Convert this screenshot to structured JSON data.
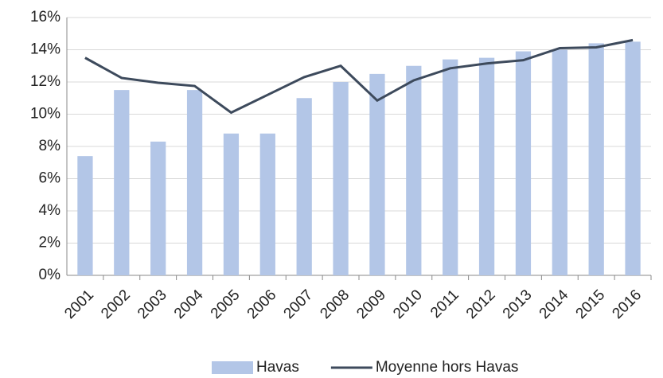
{
  "chart_data": {
    "type": "bar-line",
    "categories": [
      "2001",
      "2002",
      "2003",
      "2004",
      "2005",
      "2006",
      "2007",
      "2008",
      "2009",
      "2010",
      "2011",
      "2012",
      "2013",
      "2014",
      "2015",
      "2016"
    ],
    "series": [
      {
        "name": "Havas",
        "type": "bar",
        "color": "#b3c6e7",
        "values": [
          7.4,
          11.5,
          8.3,
          11.5,
          8.8,
          8.8,
          11.0,
          12.0,
          12.5,
          13.0,
          13.4,
          13.5,
          13.9,
          14.0,
          14.4,
          14.5
        ]
      },
      {
        "name": "Moyenne hors Havas",
        "type": "line",
        "color": "#3d4a5c",
        "values": [
          13.5,
          12.25,
          11.95,
          11.75,
          10.1,
          11.2,
          12.3,
          13.0,
          10.85,
          12.1,
          12.85,
          13.15,
          13.35,
          14.1,
          14.15,
          14.6
        ]
      }
    ],
    "ylim": [
      0,
      16
    ],
    "yticks": [
      {
        "value": 0,
        "label": "0%"
      },
      {
        "value": 2,
        "label": "2%"
      },
      {
        "value": 4,
        "label": "4%"
      },
      {
        "value": 6,
        "label": "6%"
      },
      {
        "value": 8,
        "label": "8%"
      },
      {
        "value": 10,
        "label": "10%"
      },
      {
        "value": 12,
        "label": "12%"
      },
      {
        "value": 14,
        "label": "14%"
      },
      {
        "value": 16,
        "label": "16%"
      }
    ],
    "grid": true,
    "legend": "bottom"
  }
}
